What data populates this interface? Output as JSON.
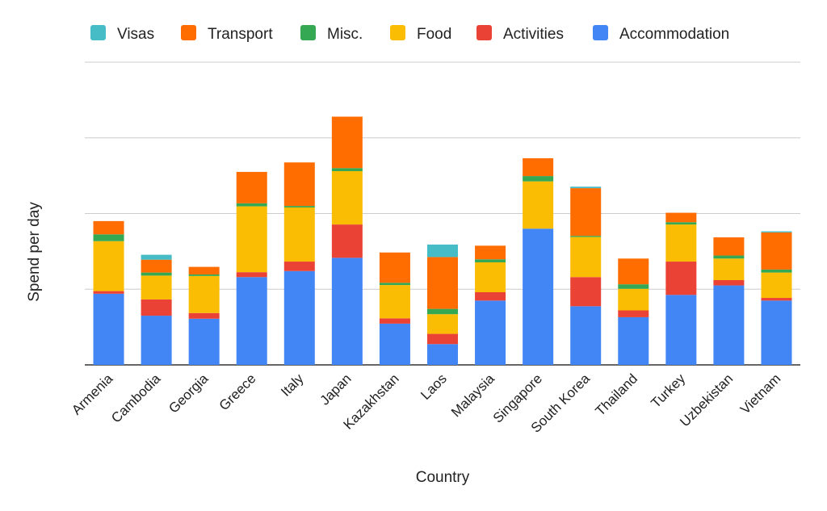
{
  "chart_data": {
    "type": "bar",
    "stacked": true,
    "title": "",
    "xlabel": "Country",
    "ylabel": "Spend per day",
    "ylim": [
      0,
      80
    ],
    "y_gridlines": [
      0,
      20,
      40,
      60,
      80
    ],
    "y_tick_labels_shown": false,
    "grid": true,
    "legend_position": "top",
    "legend_order": [
      "Visas",
      "Transport",
      "Misc.",
      "Food",
      "Activities",
      "Accommodation"
    ],
    "categories": [
      "Armenia",
      "Cambodia",
      "Georgia",
      "Greece",
      "Italy",
      "Japan",
      "Kazakhstan",
      "Laos",
      "Malaysia",
      "Singapore",
      "South Korea",
      "Thailand",
      "Turkey",
      "Uzbekistan",
      "Vietnam"
    ],
    "series": [
      {
        "name": "Accommodation",
        "color": "#4285F4",
        "values": [
          18.8,
          13.0,
          12.2,
          23.2,
          24.8,
          28.3,
          10.9,
          5.5,
          17.0,
          36.0,
          15.5,
          12.6,
          18.5,
          21.0,
          17.0
        ]
      },
      {
        "name": "Activities",
        "color": "#EA4335",
        "values": [
          0.7,
          4.3,
          1.5,
          1.3,
          2.5,
          8.8,
          1.4,
          2.7,
          2.2,
          0,
          7.7,
          1.8,
          8.8,
          1.4,
          0.7
        ]
      },
      {
        "name": "Food",
        "color": "#FBBC04",
        "values": [
          13.2,
          6.3,
          9.8,
          17.4,
          14.3,
          14.1,
          8.8,
          5.2,
          7.9,
          12.5,
          10.6,
          5.7,
          9.8,
          5.7,
          6.7
        ]
      },
      {
        "name": "Misc.",
        "color": "#34A853",
        "values": [
          1.8,
          0.8,
          0.4,
          0.8,
          0.4,
          0.8,
          0.6,
          1.4,
          0.8,
          1.4,
          0.3,
          1.2,
          0.6,
          0.8,
          0.8
        ]
      },
      {
        "name": "Transport",
        "color": "#FF6D01",
        "values": [
          3.5,
          3.4,
          2.0,
          8.3,
          11.5,
          13.6,
          8.0,
          13.7,
          3.6,
          4.7,
          12.6,
          6.8,
          2.5,
          4.8,
          9.8
        ]
      },
      {
        "name": "Visas",
        "color": "#46BDC6",
        "values": [
          0,
          1.3,
          0,
          0,
          0,
          0,
          0,
          3.3,
          0,
          0,
          0.4,
          0,
          0,
          0,
          0.3
        ]
      }
    ]
  }
}
